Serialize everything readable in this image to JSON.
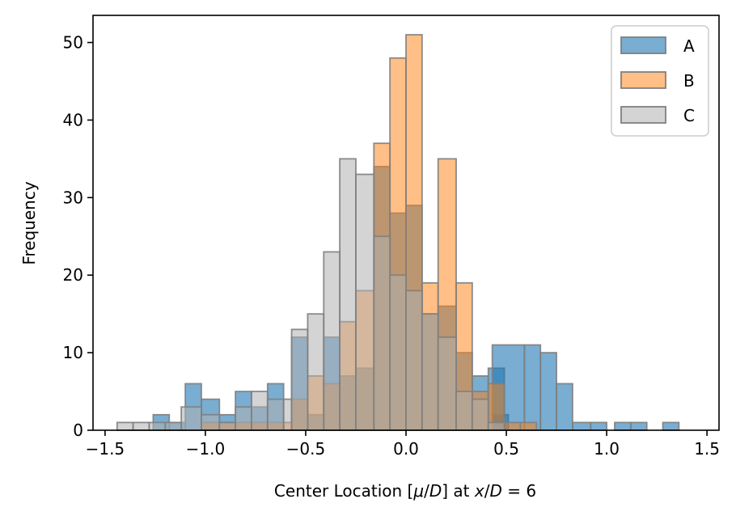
{
  "chart_data": {
    "type": "histogram",
    "xlabel": "Center Location [μ/D] at x/D = 6",
    "xlabel_parts": {
      "prefix": "Center Location [",
      "mu": "μ",
      "mid": "/",
      "d1": "D",
      "close": "] at ",
      "x": "x",
      "slash": "/",
      "d2": "D",
      "eq": " = 6"
    },
    "ylabel": "Frequency",
    "xlim": [
      -1.56,
      1.56
    ],
    "ylim": [
      0,
      53.5
    ],
    "xticks": [
      -1.5,
      -1.0,
      -0.5,
      0.0,
      0.5,
      1.0,
      1.5
    ],
    "xtick_labels": [
      "−1.5",
      "−1.0",
      "−0.5",
      "0.0",
      "0.5",
      "1.0",
      "1.5"
    ],
    "yticks": [
      0,
      10,
      20,
      30,
      40,
      50
    ],
    "ytick_labels": [
      "0",
      "10",
      "20",
      "30",
      "40",
      "50"
    ],
    "grid": false,
    "legend_position": "top-right",
    "series": [
      {
        "name": "A",
        "color": "#1f77b4",
        "alpha": 0.6,
        "edgecolor": "#808080",
        "bins": [
          [
            -1.26,
            -1.18,
            2
          ],
          [
            -1.18,
            -1.1,
            1
          ],
          [
            -1.1,
            -1.02,
            6
          ],
          [
            -1.02,
            -0.93,
            4
          ],
          [
            -0.93,
            -0.85,
            2
          ],
          [
            -0.85,
            -0.77,
            5
          ],
          [
            -0.77,
            -0.69,
            3
          ],
          [
            -0.69,
            -0.61,
            6
          ],
          [
            -0.57,
            -0.49,
            12
          ],
          [
            -0.49,
            -0.41,
            2
          ],
          [
            -0.41,
            -0.33,
            12
          ],
          [
            -0.33,
            -0.25,
            7
          ],
          [
            -0.25,
            -0.16,
            8
          ],
          [
            -0.16,
            -0.08,
            34
          ],
          [
            -0.08,
            0.0,
            28
          ],
          [
            0.0,
            0.08,
            29
          ],
          [
            0.08,
            0.16,
            15
          ],
          [
            0.16,
            0.25,
            16
          ],
          [
            0.25,
            0.33,
            10
          ],
          [
            0.33,
            0.41,
            7
          ],
          [
            0.41,
            0.49,
            8
          ],
          [
            0.43,
            0.51,
            2
          ],
          [
            0.43,
            0.59,
            11
          ],
          [
            0.59,
            0.67,
            11
          ],
          [
            0.67,
            0.75,
            10
          ],
          [
            0.75,
            0.83,
            6
          ],
          [
            0.83,
            0.92,
            1
          ],
          [
            0.92,
            1.0,
            1
          ],
          [
            1.04,
            1.12,
            1
          ],
          [
            1.12,
            1.2,
            1
          ],
          [
            1.28,
            1.36,
            1
          ]
        ]
      },
      {
        "name": "B",
        "color": "#ff7f0e",
        "alpha": 0.5,
        "edgecolor": "#808080",
        "bins": [
          [
            -1.02,
            -0.93,
            1
          ],
          [
            -0.93,
            -0.85,
            1
          ],
          [
            -0.85,
            -0.77,
            1
          ],
          [
            -0.77,
            -0.69,
            1
          ],
          [
            -0.69,
            -0.61,
            1
          ],
          [
            -0.61,
            -0.57,
            1
          ],
          [
            -0.57,
            -0.49,
            4
          ],
          [
            -0.49,
            -0.41,
            7
          ],
          [
            -0.41,
            -0.33,
            6
          ],
          [
            -0.33,
            -0.25,
            14
          ],
          [
            -0.25,
            -0.16,
            18
          ],
          [
            -0.16,
            -0.08,
            37
          ],
          [
            -0.08,
            0.0,
            48
          ],
          [
            0.0,
            0.08,
            51
          ],
          [
            0.08,
            0.16,
            19
          ],
          [
            0.16,
            0.25,
            35
          ],
          [
            0.25,
            0.33,
            19
          ],
          [
            0.33,
            0.41,
            5
          ],
          [
            0.41,
            0.49,
            6
          ],
          [
            0.49,
            0.57,
            1
          ],
          [
            0.57,
            0.65,
            1
          ]
        ]
      },
      {
        "name": "C",
        "color": "#b0b0b0",
        "alpha": 0.55,
        "edgecolor": "#808080",
        "bins": [
          [
            -1.44,
            -1.36,
            1
          ],
          [
            -1.36,
            -1.28,
            1
          ],
          [
            -1.28,
            -1.2,
            1
          ],
          [
            -1.2,
            -1.12,
            1
          ],
          [
            -1.12,
            -1.02,
            3
          ],
          [
            -1.02,
            -0.93,
            2
          ],
          [
            -0.93,
            -0.85,
            1
          ],
          [
            -0.85,
            -0.77,
            3
          ],
          [
            -0.77,
            -0.69,
            5
          ],
          [
            -0.69,
            -0.61,
            4
          ],
          [
            -0.61,
            -0.57,
            4
          ],
          [
            -0.57,
            -0.49,
            13
          ],
          [
            -0.49,
            -0.41,
            15
          ],
          [
            -0.41,
            -0.33,
            23
          ],
          [
            -0.33,
            -0.25,
            35
          ],
          [
            -0.25,
            -0.16,
            33
          ],
          [
            -0.16,
            -0.08,
            25
          ],
          [
            -0.08,
            0.0,
            20
          ],
          [
            0.0,
            0.08,
            18
          ],
          [
            0.08,
            0.16,
            15
          ],
          [
            0.16,
            0.25,
            12
          ],
          [
            0.25,
            0.33,
            5
          ],
          [
            0.33,
            0.41,
            4
          ],
          [
            0.41,
            0.49,
            1
          ]
        ]
      }
    ]
  }
}
